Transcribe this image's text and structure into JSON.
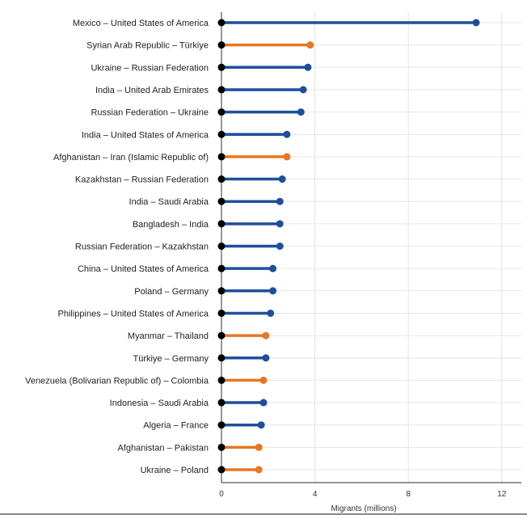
{
  "chart_data": {
    "type": "lollipop",
    "xlabel": "Migrants (millions)",
    "ylabel": "",
    "xlim": [
      0,
      12.8
    ],
    "xticks": [
      "0",
      "4",
      "8",
      "12"
    ],
    "grid": true,
    "colors": {
      "blue": "#1f4e9c",
      "orange": "#e87722",
      "start": "#000000"
    },
    "categories": [
      "Mexico – United States of America",
      "Syrian Arab Republic – Türkiye",
      "Ukraine – Russian Federation",
      "India – United Arab Emirates",
      "Russian Federation – Ukraine",
      "India – United States of America",
      "Afghanistan – Iran (Islamic Republic of)",
      "Kazakhstan – Russian Federation",
      "India – Saudi Arabia",
      "Bangladesh – India",
      "Russian Federation – Kazakhstan",
      "China – United States of America",
      "Poland – Germany",
      "Philippines – United States of America",
      "Myanmar – Thailand",
      "Türkiye – Germany",
      "Venezuela (Bolivarian Republic of) – Colombia",
      "Indonesia – Saudi Arabia",
      "Algeria – France",
      "Afghanistan – Pakistan",
      "Ukraine – Poland"
    ],
    "values": [
      10.9,
      3.8,
      3.7,
      3.5,
      3.4,
      2.8,
      2.8,
      2.6,
      2.5,
      2.5,
      2.5,
      2.2,
      2.2,
      2.1,
      1.9,
      1.9,
      1.8,
      1.8,
      1.7,
      1.6,
      1.6
    ],
    "point_colors": [
      "blue",
      "orange",
      "blue",
      "blue",
      "blue",
      "blue",
      "orange",
      "blue",
      "blue",
      "blue",
      "blue",
      "blue",
      "blue",
      "blue",
      "orange",
      "blue",
      "orange",
      "blue",
      "blue",
      "orange",
      "orange"
    ]
  }
}
